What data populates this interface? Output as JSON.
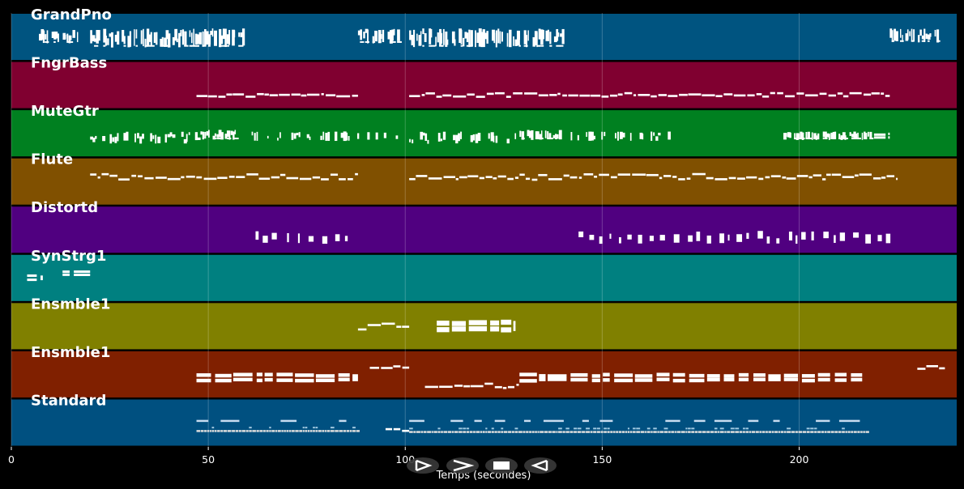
{
  "chart_data": {
    "type": "piano-roll",
    "xlabel": "Temps (secondes)",
    "xlim": [
      0,
      240
    ],
    "xticks": [
      0,
      50,
      100,
      150,
      200
    ],
    "grid": true,
    "tracks": [
      {
        "name": "GrandPno",
        "color": "#005480",
        "segments": [
          {
            "start": 7,
            "end": 17,
            "y0": 0.32,
            "y1": 0.62,
            "style": "dense"
          },
          {
            "start": 20,
            "end": 59,
            "y0": 0.32,
            "y1": 0.7,
            "style": "dense"
          },
          {
            "start": 88,
            "end": 98,
            "y0": 0.32,
            "y1": 0.62,
            "style": "dense"
          },
          {
            "start": 101,
            "end": 140,
            "y0": 0.32,
            "y1": 0.7,
            "style": "dense"
          },
          {
            "start": 223,
            "end": 235,
            "y0": 0.32,
            "y1": 0.6,
            "style": "dense"
          }
        ]
      },
      {
        "name": "FngrBass",
        "color": "#800030",
        "segments": [
          {
            "start": 47,
            "end": 88,
            "y0": 0.66,
            "y1": 0.72,
            "style": "line"
          },
          {
            "start": 101,
            "end": 223,
            "y0": 0.64,
            "y1": 0.72,
            "style": "line"
          }
        ]
      },
      {
        "name": "MuteGtr",
        "color": "#008020",
        "segments": [
          {
            "start": 20,
            "end": 48,
            "y0": 0.46,
            "y1": 0.68,
            "style": "sparse"
          },
          {
            "start": 48,
            "end": 57,
            "y0": 0.42,
            "y1": 0.62,
            "style": "dense"
          },
          {
            "start": 61,
            "end": 99,
            "y0": 0.46,
            "y1": 0.62,
            "style": "sparse"
          },
          {
            "start": 101,
            "end": 128,
            "y0": 0.46,
            "y1": 0.68,
            "style": "sparse"
          },
          {
            "start": 129,
            "end": 139,
            "y0": 0.42,
            "y1": 0.62,
            "style": "dense"
          },
          {
            "start": 142,
            "end": 167,
            "y0": 0.46,
            "y1": 0.62,
            "style": "sparse"
          },
          {
            "start": 196,
            "end": 218,
            "y0": 0.46,
            "y1": 0.62,
            "style": "dense"
          },
          {
            "start": 219,
            "end": 223,
            "y0": 0.48,
            "y1": 0.6,
            "style": "block"
          }
        ]
      },
      {
        "name": "Flute",
        "color": "#805000",
        "segments": [
          {
            "start": 20,
            "end": 88,
            "y0": 0.32,
            "y1": 0.44,
            "style": "line"
          },
          {
            "start": 101,
            "end": 225,
            "y0": 0.32,
            "y1": 0.44,
            "style": "line"
          }
        ]
      },
      {
        "name": "Distortd",
        "color": "#500080",
        "segments": [
          {
            "start": 62,
            "end": 86,
            "y0": 0.52,
            "y1": 0.72,
            "style": "chords"
          },
          {
            "start": 144,
            "end": 224,
            "y0": 0.52,
            "y1": 0.72,
            "style": "chords"
          }
        ]
      },
      {
        "name": "SynStrg1",
        "color": "#008080",
        "segments": [
          {
            "start": 4,
            "end": 8,
            "y0": 0.42,
            "y1": 0.54,
            "style": "block"
          },
          {
            "start": 13,
            "end": 20,
            "y0": 0.34,
            "y1": 0.42,
            "style": "block"
          }
        ]
      },
      {
        "name": "Ensmble1",
        "color": "#808000",
        "segments": [
          {
            "start": 88,
            "end": 101,
            "y0": 0.4,
            "y1": 0.56,
            "style": "line"
          },
          {
            "start": 108,
            "end": 128,
            "y0": 0.36,
            "y1": 0.62,
            "style": "block"
          }
        ]
      },
      {
        "name": "Ensmble1",
        "color": "#802000",
        "segments": [
          {
            "start": 47,
            "end": 88,
            "y0": 0.46,
            "y1": 0.66,
            "style": "block"
          },
          {
            "start": 91,
            "end": 101,
            "y0": 0.28,
            "y1": 0.36,
            "style": "line"
          },
          {
            "start": 105,
            "end": 129,
            "y0": 0.66,
            "y1": 0.76,
            "style": "line"
          },
          {
            "start": 129,
            "end": 216,
            "y0": 0.46,
            "y1": 0.66,
            "style": "block"
          },
          {
            "start": 230,
            "end": 237,
            "y0": 0.3,
            "y1": 0.36,
            "style": "line"
          }
        ]
      },
      {
        "name": "Standard",
        "color": "#005080",
        "segments": [
          {
            "start": 47,
            "end": 88,
            "y0": 0.44,
            "y1": 0.7,
            "style": "drums"
          },
          {
            "start": 95,
            "end": 101,
            "y0": 0.6,
            "y1": 0.7,
            "style": "line"
          },
          {
            "start": 101,
            "end": 217,
            "y0": 0.44,
            "y1": 0.72,
            "style": "drums"
          }
        ]
      }
    ]
  },
  "controls": [
    {
      "id": "play",
      "icon": "play-icon"
    },
    {
      "id": "fast-forward",
      "icon": "fast-forward-icon"
    },
    {
      "id": "stop",
      "icon": "stop-icon"
    },
    {
      "id": "rewind",
      "icon": "rewind-icon"
    }
  ]
}
